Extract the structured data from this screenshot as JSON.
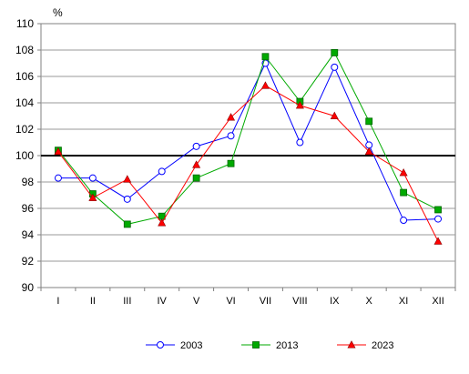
{
  "chart_data": {
    "type": "line",
    "y_unit": "%",
    "categories": [
      "I",
      "II",
      "III",
      "IV",
      "V",
      "VI",
      "VII",
      "VIII",
      "IX",
      "X",
      "XI",
      "XII"
    ],
    "ylim": [
      90,
      110
    ],
    "yticks": [
      90,
      92,
      94,
      96,
      98,
      100,
      102,
      104,
      106,
      108,
      110
    ],
    "reference_line": 100,
    "grid": true,
    "legend_position": "bottom",
    "series": [
      {
        "name": "2003",
        "color": "#0000ff",
        "marker": "circle",
        "values": [
          98.3,
          98.3,
          96.7,
          98.8,
          100.7,
          101.5,
          107.0,
          101.0,
          106.7,
          100.8,
          95.1,
          95.2
        ]
      },
      {
        "name": "2013",
        "color": "#00aa00",
        "marker": "square",
        "values": [
          100.4,
          97.1,
          94.8,
          95.4,
          98.3,
          99.4,
          107.5,
          104.1,
          107.8,
          102.6,
          97.2,
          95.9
        ]
      },
      {
        "name": "2023",
        "color": "#ff0000",
        "marker": "triangle",
        "values": [
          100.3,
          96.8,
          98.2,
          94.9,
          99.3,
          102.9,
          105.3,
          103.8,
          103.0,
          100.3,
          98.7,
          93.5
        ]
      }
    ]
  }
}
